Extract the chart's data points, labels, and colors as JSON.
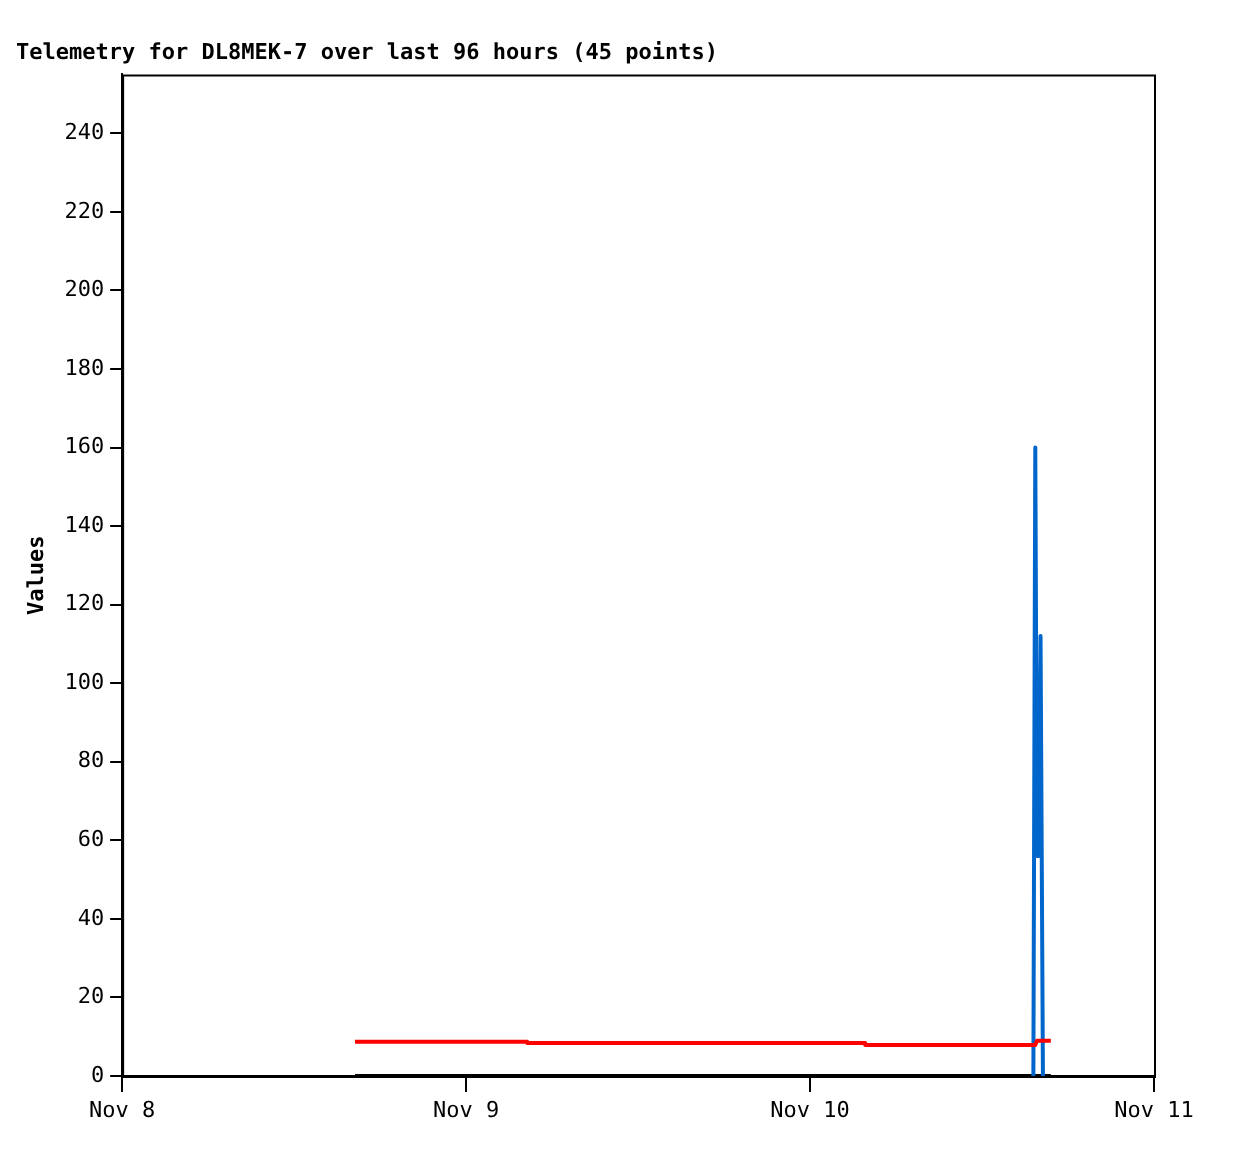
{
  "chart_data": {
    "type": "line",
    "title": "Telemetry for DL8MEK-7 over last 96 hours (45 points)",
    "ylabel": "Values",
    "xlim": [
      "--11-08",
      "--11-11"
    ],
    "xticks": [
      {
        "value": "--11-08",
        "label": "Nov 8"
      },
      {
        "value": "--11-09",
        "label": "Nov 9"
      },
      {
        "value": "--11-10",
        "label": "Nov 10"
      },
      {
        "value": "--11-11",
        "label": "Nov 11"
      }
    ],
    "ylim": [
      0,
      255
    ],
    "yticks": [
      0,
      20,
      40,
      60,
      80,
      100,
      120,
      140,
      160,
      180,
      200,
      220,
      240
    ],
    "grid": false,
    "legend": false,
    "marker": "none",
    "line_style": "solid",
    "series": [
      {
        "color": "#ff0000",
        "x": [
          "--11-08T16:15",
          "--11-09T04:15",
          "--11-09T04:16",
          "--11-10T03:50",
          "--11-10T03:51",
          "--11-10T15:43",
          "--11-10T15:50",
          "--11-10T16:48"
        ],
        "values": [
          8.7,
          8.7,
          8.4,
          8.4,
          7.9,
          7.9,
          9,
          9
        ]
      },
      {
        "color": "#0066cc",
        "x": [
          "--11-10T15:35",
          "--11-10T15:43",
          "--11-10T15:50",
          "--11-10T15:58",
          "--11-10T16:05",
          "--11-10T16:15"
        ],
        "values": [
          0,
          160,
          56,
          56,
          112,
          0
        ]
      },
      {
        "color": "#000000",
        "x": [
          "--11-08T16:15",
          "--11-10T16:48"
        ],
        "values": [
          0,
          0
        ]
      }
    ]
  }
}
